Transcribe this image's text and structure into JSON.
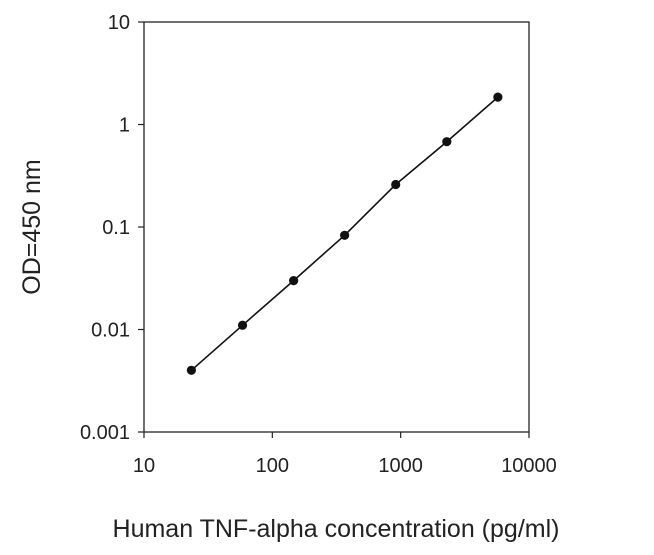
{
  "chart_data": {
    "type": "scatter",
    "title": "",
    "xlabel": "Human TNF-alpha concentration (pg/ml)",
    "ylabel": "OD=450 nm",
    "x_scale": "log",
    "y_scale": "log",
    "xlim": [
      10,
      10000
    ],
    "ylim": [
      0.001,
      10
    ],
    "x_ticks": [
      {
        "value": 10,
        "label": "10"
      },
      {
        "value": 100,
        "label": "100"
      },
      {
        "value": 1000,
        "label": "1000"
      },
      {
        "value": 10000,
        "label": "10000"
      }
    ],
    "y_ticks": [
      {
        "value": 0.001,
        "label": "0.001"
      },
      {
        "value": 0.01,
        "label": "0.01"
      },
      {
        "value": 0.1,
        "label": "0.1"
      },
      {
        "value": 1,
        "label": "1"
      },
      {
        "value": 10,
        "label": "10"
      }
    ],
    "grid": false,
    "legend": "none",
    "series": [
      {
        "x": [
          23.4,
          58.6,
          146.5,
          366,
          915,
          2289,
          5722
        ],
        "y": [
          0.004,
          0.011,
          0.03,
          0.083,
          0.26,
          0.68,
          1.85
        ],
        "marker": "circle",
        "connected": true
      }
    ],
    "colors": {
      "series": "#111111",
      "axis": "#222222"
    }
  }
}
